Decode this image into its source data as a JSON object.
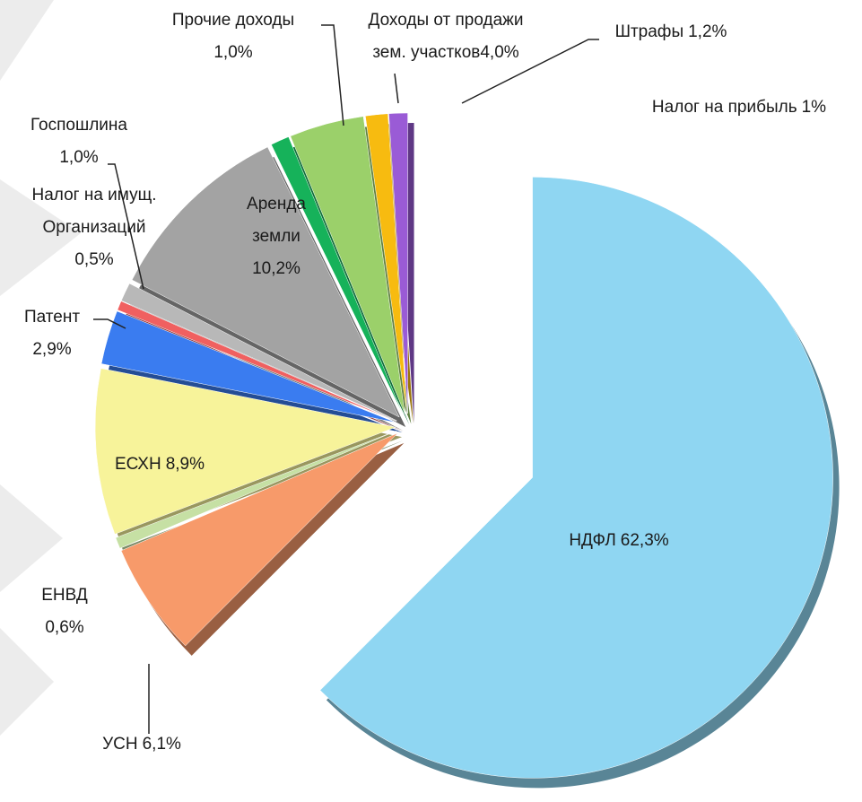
{
  "chart_data": {
    "type": "pie",
    "categories": [
      "НДФЛ",
      "УСН",
      "ЕНВД",
      "ЕСХН",
      "Патент",
      "Налог на имущ. Организаций",
      "Госпошлина",
      "Аренда земли",
      "Прочие доходы",
      "Доходы от продажи зем. участков",
      "Штрафы",
      "Налог на прибыль"
    ],
    "values": [
      62.3,
      6.1,
      0.6,
      8.9,
      2.9,
      0.5,
      1.0,
      10.2,
      1.0,
      4.0,
      1.2,
      1
    ],
    "value_labels": [
      "62,3%",
      "6,1%",
      "0,6%",
      "8,9%",
      "2,9%",
      "0,5%",
      "1,0%",
      "10,2%",
      "1,0%",
      "4,0%",
      "1,2%",
      "1%"
    ],
    "colors": [
      "#8fd6f2",
      "#f79a6a",
      "#c6e0a4",
      "#f7f39a",
      "#3a7cf0",
      "#f06060",
      "#b8b8b8",
      "#a3a3a3",
      "#16b25a",
      "#9bd06a",
      "#f7bb10",
      "#9a5bd6"
    ]
  }
}
